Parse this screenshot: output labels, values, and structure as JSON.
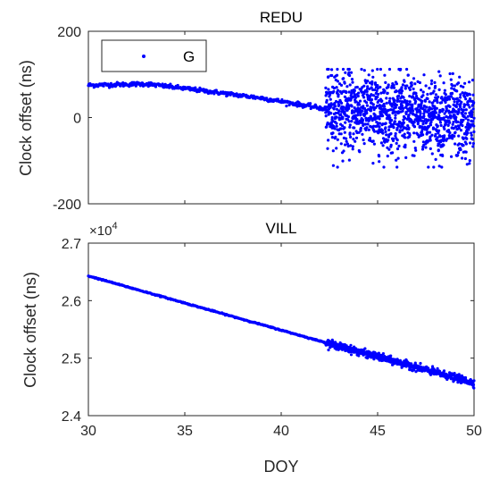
{
  "chart_data": [
    {
      "type": "scatter",
      "title": "REDU",
      "ylabel": "Clock offset (ns)",
      "xlabel": "",
      "xlim": [
        30,
        50
      ],
      "ylim": [
        -200,
        200
      ],
      "xticks": [
        30,
        35,
        40,
        45,
        50
      ],
      "yticks": [
        "-200",
        "0",
        "200"
      ],
      "xtick_labels_visible": false,
      "legend": {
        "placement": "top-left",
        "entries": [
          "G"
        ]
      },
      "grid": false,
      "series": [
        {
          "name": "G",
          "color": "#0000ff",
          "segments": [
            {
              "x_range": [
                30.0,
                42.3
              ],
              "trend": [
                [
                  30.0,
                  75
                ],
                [
                  33.0,
                  78
                ],
                [
                  36.0,
                  62
                ],
                [
                  39.0,
                  45
                ],
                [
                  42.3,
                  20
                ]
              ],
              "noise": 5
            },
            {
              "x_range": [
                42.3,
                50.0
              ],
              "trend": [
                [
                  42.3,
                  20
                ],
                [
                  46.0,
                  10
                ],
                [
                  50.0,
                  -10
                ]
              ],
              "noise": 90,
              "y_extent": [
                -115,
                112
              ]
            }
          ]
        }
      ]
    },
    {
      "type": "scatter",
      "title": "VILL",
      "ylabel": "Clock offset (ns)",
      "xlabel": "DOY",
      "xlim": [
        30,
        50
      ],
      "ylim": [
        2.4,
        2.7
      ],
      "y_multiplier": "×10",
      "y_multiplier_exponent": "4",
      "xticks": [
        "30",
        "35",
        "40",
        "45",
        "50"
      ],
      "yticks": [
        "2.4",
        "2.5",
        "2.6",
        "2.7"
      ],
      "grid": false,
      "series": [
        {
          "color": "#0000ff",
          "segments": [
            {
              "x_range": [
                30.0,
                42.3
              ],
              "trend": [
                [
                  30.0,
                  2.643
                ],
                [
                  42.3,
                  2.527
                ]
              ],
              "noise": 0.001
            },
            {
              "x_range": [
                42.3,
                50.0
              ],
              "trend": [
                [
                  42.3,
                  2.527
                ],
                [
                  50.0,
                  2.457
                ]
              ],
              "noise": 0.006
            }
          ]
        }
      ]
    }
  ]
}
